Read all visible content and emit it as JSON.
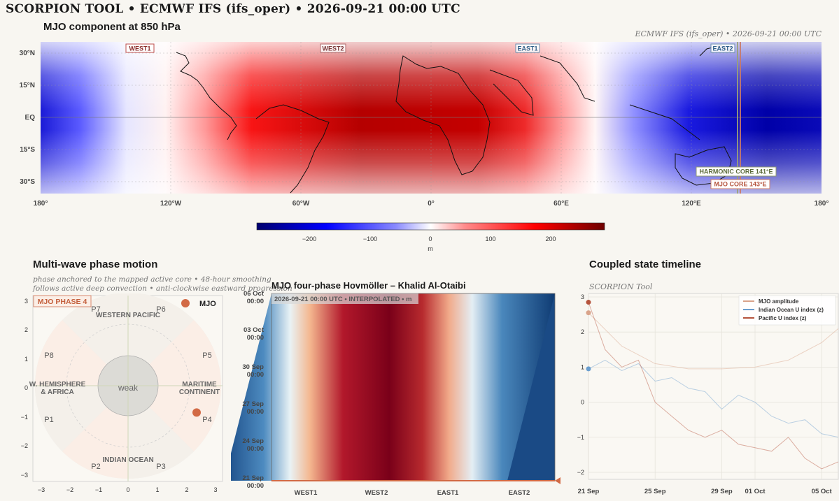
{
  "header": {
    "title": "SCORPION TOOL  •  ECMWF IFS (ifs_oper)  •  2026-09-21 00:00 UTC"
  },
  "map": {
    "title": "MJO component at 850 hPa",
    "meta": "ECMWF IFS (ifs_oper)  •  2026-09-21 00:00 UTC",
    "lat_labels": [
      "30°N",
      "15°N",
      "EQ",
      "15°S",
      "30°S"
    ],
    "lon_labels": [
      "180°",
      "120°W",
      "60°W",
      "0°",
      "60°E",
      "120°E",
      "180°"
    ],
    "region_labels": [
      "WEST1",
      "WEST2",
      "EAST1",
      "EAST2"
    ],
    "harmonic_core": "HARMONIC CORE  141°E",
    "mjo_core": "MJO CORE  143°E",
    "colorbar": {
      "ticks": [
        "−200",
        "−100",
        "0",
        "100",
        "200"
      ],
      "unit": "m"
    }
  },
  "phase_panel": {
    "title": "Multi-wave phase motion",
    "subtitle_line1": "phase anchored to the mapped active core • 48-hour smoothing",
    "subtitle_line2": "follows active deep convection • anti-clockwise eastward progression",
    "badge": "MJO PHASE 4",
    "legend": "MJO",
    "center_label": "weak",
    "phases": [
      "P1",
      "P2",
      "P3",
      "P4",
      "P5",
      "P6",
      "P7",
      "P8"
    ],
    "regions": {
      "western_pacific": "WESTERN PACIFIC",
      "maritime_l1": "MARITIME",
      "maritime_l2": "CONTINENT",
      "indian_ocean": "INDIAN OCEAN",
      "whemi_l1": "W. HEMISPHERE",
      "whemi_l2": "& AFRICA"
    },
    "x_ticks": [
      "−3",
      "−2",
      "−1",
      "0",
      "1",
      "2",
      "3"
    ],
    "y_ticks": [
      "3",
      "2",
      "1",
      "0",
      "−1",
      "−2",
      "−3"
    ],
    "state": {
      "rmm1": 2.35,
      "rmm2": -0.92
    }
  },
  "hovmoller": {
    "title": "MJO four-phase Hovmöller – Khalid Al-Otaibi",
    "status_time": "2026-09-21 00:00 UTC",
    "status_mode": "INTERPOLATED",
    "status_unit": "m",
    "y_dates": [
      "06 Oct",
      "03 Oct",
      "30 Sep",
      "27 Sep",
      "24 Sep",
      "21 Sep"
    ],
    "y_time": "00:00",
    "x_labels": [
      "WEST1",
      "WEST2",
      "EAST1",
      "EAST2"
    ]
  },
  "timeline": {
    "title": "Coupled state timeline",
    "subtitle": "SCORPION Tool",
    "legend": [
      {
        "name": "MJO amplitude",
        "color": "#d9a38a"
      },
      {
        "name": "Indian Ocean U index (z)",
        "color": "#6a9ecf"
      },
      {
        "name": "Pacific U index (z)",
        "color": "#b5533c"
      }
    ],
    "y_ticks": [
      "3",
      "2",
      "1",
      "0",
      "−1",
      "−2"
    ],
    "x_ticks": [
      "21 Sep",
      "25 Sep",
      "29 Sep",
      "01 Oct",
      "05 Oct"
    ]
  },
  "chart_data": {
    "type": "line",
    "title": "Coupled state timeline",
    "ylim": [
      -2.2,
      3.1
    ],
    "x_range": [
      "2026-09-21",
      "2026-10-06"
    ],
    "series": [
      {
        "name": "MJO amplitude",
        "x": [
          "2026-09-21",
          "2026-09-23",
          "2026-09-25",
          "2026-09-27",
          "2026-09-29",
          "2026-10-01",
          "2026-10-03",
          "2026-10-05",
          "2026-10-06"
        ],
        "values": [
          2.55,
          1.6,
          1.1,
          0.95,
          0.95,
          1.0,
          1.2,
          1.7,
          2.1
        ]
      },
      {
        "name": "Indian Ocean U index (z)",
        "x": [
          "2026-09-21",
          "2026-09-22",
          "2026-09-23",
          "2026-09-24",
          "2026-09-25",
          "2026-09-26",
          "2026-09-27",
          "2026-09-28",
          "2026-09-29",
          "2026-09-30",
          "2026-10-01",
          "2026-10-02",
          "2026-10-03",
          "2026-10-04",
          "2026-10-05",
          "2026-10-06"
        ],
        "values": [
          0.95,
          1.2,
          0.9,
          1.1,
          0.6,
          0.7,
          0.4,
          0.3,
          -0.2,
          0.2,
          0.0,
          -0.4,
          -0.6,
          -0.5,
          -0.9,
          -1.0
        ]
      },
      {
        "name": "Pacific U index (z)",
        "x": [
          "2026-09-21",
          "2026-09-22",
          "2026-09-23",
          "2026-09-24",
          "2026-09-25",
          "2026-09-26",
          "2026-09-27",
          "2026-09-28",
          "2026-09-29",
          "2026-09-30",
          "2026-10-01",
          "2026-10-02",
          "2026-10-03",
          "2026-10-04",
          "2026-10-05",
          "2026-10-06"
        ],
        "values": [
          2.85,
          1.5,
          1.0,
          1.2,
          0.0,
          -0.4,
          -0.8,
          -1.0,
          -0.8,
          -1.2,
          -1.3,
          -1.4,
          -1.0,
          -1.6,
          -1.9,
          -1.7
        ]
      }
    ]
  }
}
